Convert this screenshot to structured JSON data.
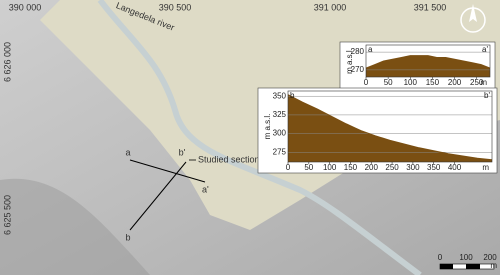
{
  "map": {
    "grid_labels_x": [
      "390 000",
      "390 500",
      "391 000",
      "391 500"
    ],
    "grid_labels_y": [
      "6 626 000",
      "6 625 500"
    ],
    "river_label": "Langedela river",
    "annotation": "Studied section",
    "points": [
      "a",
      "a'",
      "b",
      "b'"
    ],
    "scale_bar": {
      "ticks": [
        "0",
        "100",
        "200"
      ],
      "unit": "m"
    }
  },
  "chart_data": [
    {
      "type": "area",
      "corner_labels": [
        "a",
        "a'"
      ],
      "y_label": "m a.s.l.",
      "x_unit": "m",
      "color": "#7a4f12",
      "grid": true,
      "x": [
        0,
        20,
        40,
        60,
        80,
        100,
        120,
        140,
        160,
        180,
        200,
        220,
        240,
        260,
        280
      ],
      "values": [
        271,
        273,
        275,
        276,
        277,
        278,
        278,
        278,
        277,
        277,
        276,
        275,
        274,
        273,
        271
      ],
      "xlim": [
        0,
        280
      ],
      "xticks": [
        0,
        50,
        100,
        150,
        200,
        250
      ],
      "ylim": [
        266,
        284
      ],
      "yticks": [
        270,
        280
      ]
    },
    {
      "type": "area",
      "corner_labels": [
        "b",
        "b'"
      ],
      "y_label": "m a.s.l.",
      "x_unit": "m",
      "color": "#7a4f12",
      "grid": true,
      "x": [
        0,
        35,
        70,
        105,
        140,
        175,
        210,
        245,
        280,
        315,
        350,
        385,
        420,
        455,
        490
      ],
      "values": [
        352,
        342,
        333,
        323,
        313,
        304,
        297,
        291,
        286,
        281,
        277,
        273,
        270,
        267,
        265
      ],
      "xlim": [
        0,
        490
      ],
      "xticks": [
        0,
        50,
        100,
        150,
        200,
        250,
        300,
        350,
        400
      ],
      "ylim": [
        262,
        357
      ],
      "yticks": [
        275,
        300,
        325,
        350
      ]
    }
  ]
}
